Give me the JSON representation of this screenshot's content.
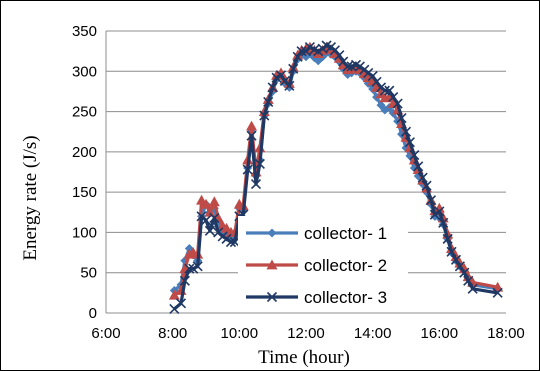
{
  "chart_data": {
    "type": "line",
    "xlabel": "Time (hour)",
    "ylabel": "Energy rate (J/s)",
    "xlim": [
      "6:00",
      "18:00"
    ],
    "ylim": [
      0,
      350
    ],
    "xticks": [
      "6:00",
      "8:00",
      "10:00",
      "12:00",
      "14:00",
      "16:00",
      "18:00"
    ],
    "yticks": [
      0,
      50,
      100,
      150,
      200,
      250,
      300,
      350
    ],
    "grid": "horizontal",
    "legend_position": "lower-center",
    "series": [
      {
        "name": "collector- 1",
        "color": "#4a7ebb",
        "marker": "diamond",
        "points": [
          [
            "8:03",
            28
          ],
          [
            "8:15",
            35
          ],
          [
            "8:22",
            65
          ],
          [
            "8:30",
            80
          ],
          [
            "8:37",
            72
          ],
          [
            "8:45",
            65
          ],
          [
            "8:52",
            120
          ],
          [
            "9:00",
            135
          ],
          [
            "9:07",
            125
          ],
          [
            "9:15",
            130
          ],
          [
            "9:22",
            110
          ],
          [
            "9:30",
            100
          ],
          [
            "9:37",
            97
          ],
          [
            "9:45",
            92
          ],
          [
            "9:52",
            95
          ],
          [
            "10:00",
            130
          ],
          [
            "10:07",
            128
          ],
          [
            "10:15",
            180
          ],
          [
            "10:22",
            225
          ],
          [
            "10:30",
            170
          ],
          [
            "10:37",
            190
          ],
          [
            "10:45",
            245
          ],
          [
            "10:52",
            260
          ],
          [
            "11:00",
            275
          ],
          [
            "11:07",
            290
          ],
          [
            "11:15",
            295
          ],
          [
            "11:22",
            285
          ],
          [
            "11:30",
            280
          ],
          [
            "11:37",
            300
          ],
          [
            "11:45",
            315
          ],
          [
            "11:52",
            320
          ],
          [
            "12:00",
            318
          ],
          [
            "12:07",
            322
          ],
          [
            "12:15",
            317
          ],
          [
            "12:22",
            313
          ],
          [
            "12:30",
            318
          ],
          [
            "12:37",
            323
          ],
          [
            "12:45",
            321
          ],
          [
            "12:52",
            318
          ],
          [
            "13:00",
            312
          ],
          [
            "13:07",
            303
          ],
          [
            "13:15",
            296
          ],
          [
            "13:22",
            298
          ],
          [
            "13:30",
            300
          ],
          [
            "13:37",
            298
          ],
          [
            "13:45",
            292
          ],
          [
            "13:52",
            285
          ],
          [
            "14:00",
            278
          ],
          [
            "14:07",
            268
          ],
          [
            "14:15",
            258
          ],
          [
            "14:22",
            252
          ],
          [
            "14:30",
            255
          ],
          [
            "14:37",
            248
          ],
          [
            "14:45",
            238
          ],
          [
            "14:52",
            222
          ],
          [
            "15:00",
            205
          ],
          [
            "15:07",
            195
          ],
          [
            "15:15",
            180
          ],
          [
            "15:22",
            170
          ],
          [
            "15:30",
            160
          ],
          [
            "15:37",
            150
          ],
          [
            "15:45",
            135
          ],
          [
            "15:52",
            120
          ],
          [
            "16:00",
            118
          ],
          [
            "16:07",
            110
          ],
          [
            "16:15",
            92
          ],
          [
            "16:22",
            75
          ],
          [
            "16:30",
            65
          ],
          [
            "16:37",
            58
          ],
          [
            "16:45",
            52
          ],
          [
            "16:52",
            42
          ],
          [
            "17:00",
            35
          ],
          [
            "17:45",
            30
          ]
        ]
      },
      {
        "name": "collector- 2",
        "color": "#be4b48",
        "marker": "triangle",
        "points": [
          [
            "8:03",
            22
          ],
          [
            "8:15",
            28
          ],
          [
            "8:22",
            55
          ],
          [
            "8:30",
            73
          ],
          [
            "8:37",
            75
          ],
          [
            "8:45",
            73
          ],
          [
            "8:52",
            140
          ],
          [
            "9:00",
            135
          ],
          [
            "9:07",
            125
          ],
          [
            "9:15",
            138
          ],
          [
            "9:22",
            118
          ],
          [
            "9:30",
            108
          ],
          [
            "9:37",
            105
          ],
          [
            "9:45",
            100
          ],
          [
            "9:52",
            100
          ],
          [
            "10:00",
            135
          ],
          [
            "10:07",
            133
          ],
          [
            "10:15",
            190
          ],
          [
            "10:22",
            232
          ],
          [
            "10:30",
            175
          ],
          [
            "10:37",
            205
          ],
          [
            "10:45",
            250
          ],
          [
            "10:52",
            265
          ],
          [
            "11:00",
            280
          ],
          [
            "11:07",
            295
          ],
          [
            "11:15",
            298
          ],
          [
            "11:22",
            290
          ],
          [
            "11:30",
            285
          ],
          [
            "11:37",
            305
          ],
          [
            "11:45",
            320
          ],
          [
            "11:52",
            326
          ],
          [
            "12:00",
            328
          ],
          [
            "12:07",
            330
          ],
          [
            "12:15",
            326
          ],
          [
            "12:22",
            322
          ],
          [
            "12:30",
            326
          ],
          [
            "12:37",
            330
          ],
          [
            "12:45",
            327
          ],
          [
            "12:52",
            322
          ],
          [
            "13:00",
            316
          ],
          [
            "13:07",
            308
          ],
          [
            "13:15",
            302
          ],
          [
            "13:22",
            303
          ],
          [
            "13:30",
            305
          ],
          [
            "13:37",
            302
          ],
          [
            "13:45",
            297
          ],
          [
            "13:52",
            292
          ],
          [
            "14:00",
            288
          ],
          [
            "14:07",
            280
          ],
          [
            "14:15",
            272
          ],
          [
            "14:22",
            267
          ],
          [
            "14:30",
            268
          ],
          [
            "14:37",
            260
          ],
          [
            "14:45",
            252
          ],
          [
            "14:52",
            235
          ],
          [
            "15:00",
            218
          ],
          [
            "15:07",
            205
          ],
          [
            "15:15",
            190
          ],
          [
            "15:22",
            178
          ],
          [
            "15:30",
            165
          ],
          [
            "15:37",
            155
          ],
          [
            "15:45",
            140
          ],
          [
            "15:52",
            127
          ],
          [
            "16:00",
            130
          ],
          [
            "16:07",
            118
          ],
          [
            "16:15",
            98
          ],
          [
            "16:22",
            80
          ],
          [
            "16:30",
            70
          ],
          [
            "16:37",
            62
          ],
          [
            "16:45",
            55
          ],
          [
            "16:52",
            45
          ],
          [
            "17:00",
            38
          ],
          [
            "17:45",
            32
          ]
        ]
      },
      {
        "name": "collector- 3",
        "color": "#1f3864",
        "marker": "x",
        "points": [
          [
            "8:03",
            5
          ],
          [
            "8:15",
            12
          ],
          [
            "8:22",
            40
          ],
          [
            "8:30",
            55
          ],
          [
            "8:37",
            55
          ],
          [
            "8:45",
            58
          ],
          [
            "8:52",
            120
          ],
          [
            "9:00",
            115
          ],
          [
            "9:07",
            102
          ],
          [
            "9:15",
            118
          ],
          [
            "9:22",
            100
          ],
          [
            "9:30",
            95
          ],
          [
            "9:37",
            92
          ],
          [
            "9:45",
            88
          ],
          [
            "9:52",
            88
          ],
          [
            "10:00",
            120
          ],
          [
            "10:07",
            122
          ],
          [
            "10:15",
            178
          ],
          [
            "10:22",
            220
          ],
          [
            "10:30",
            160
          ],
          [
            "10:37",
            185
          ],
          [
            "10:45",
            245
          ],
          [
            "10:52",
            262
          ],
          [
            "11:00",
            280
          ],
          [
            "11:07",
            292
          ],
          [
            "11:15",
            295
          ],
          [
            "11:22",
            288
          ],
          [
            "11:30",
            282
          ],
          [
            "11:37",
            303
          ],
          [
            "11:45",
            318
          ],
          [
            "11:52",
            325
          ],
          [
            "12:00",
            325
          ],
          [
            "12:07",
            330
          ],
          [
            "12:15",
            327
          ],
          [
            "12:22",
            325
          ],
          [
            "12:30",
            328
          ],
          [
            "12:37",
            332
          ],
          [
            "12:45",
            330
          ],
          [
            "12:52",
            326
          ],
          [
            "13:00",
            320
          ],
          [
            "13:07",
            312
          ],
          [
            "13:15",
            306
          ],
          [
            "13:22",
            306
          ],
          [
            "13:30",
            308
          ],
          [
            "13:37",
            306
          ],
          [
            "13:45",
            302
          ],
          [
            "13:52",
            298
          ],
          [
            "14:00",
            294
          ],
          [
            "14:07",
            287
          ],
          [
            "14:15",
            280
          ],
          [
            "14:22",
            276
          ],
          [
            "14:30",
            276
          ],
          [
            "14:37",
            268
          ],
          [
            "14:45",
            260
          ],
          [
            "14:52",
            242
          ],
          [
            "15:00",
            225
          ],
          [
            "15:07",
            212
          ],
          [
            "15:15",
            196
          ],
          [
            "15:22",
            182
          ],
          [
            "15:30",
            168
          ],
          [
            "15:37",
            158
          ],
          [
            "15:45",
            140
          ],
          [
            "15:52",
            122
          ],
          [
            "16:00",
            126
          ],
          [
            "16:07",
            112
          ],
          [
            "16:15",
            92
          ],
          [
            "16:22",
            76
          ],
          [
            "16:30",
            66
          ],
          [
            "16:37",
            58
          ],
          [
            "16:45",
            50
          ],
          [
            "16:52",
            40
          ],
          [
            "17:00",
            30
          ],
          [
            "17:45",
            25
          ]
        ]
      }
    ]
  }
}
